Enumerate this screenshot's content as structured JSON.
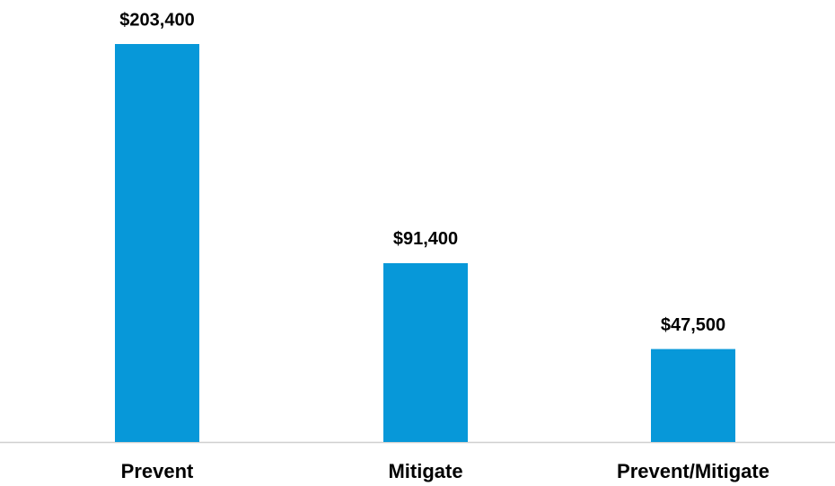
{
  "chart_data": {
    "type": "bar",
    "categories": [
      "Prevent",
      "Mitigate",
      "Prevent/Mitigate"
    ],
    "values": [
      203400,
      91400,
      47500
    ],
    "value_labels": [
      "$203,400",
      "$91,400",
      "$47,500"
    ],
    "color": "#0798d9"
  }
}
